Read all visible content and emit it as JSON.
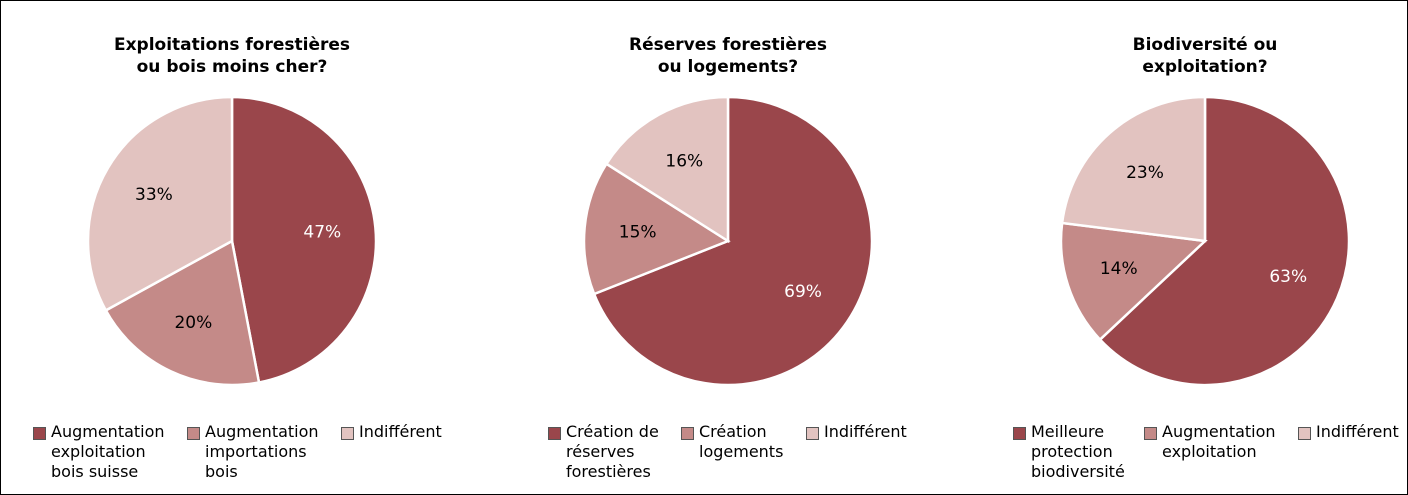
{
  "chart_data": [
    {
      "type": "pie",
      "title": "Exploitations forestières\nou bois moins cher?",
      "labels": [
        "Augmentation\nexploitation\nbois suisse",
        "Augmentation\nimportations\nbois",
        "Indifférent"
      ],
      "values": [
        47,
        20,
        33
      ],
      "value_labels": [
        "47%",
        "20%",
        "33%"
      ],
      "colors": [
        "#9a464b",
        "#c48a88",
        "#e2c3c0"
      ],
      "label_colors": [
        "#ffffff",
        "#000000",
        "#000000"
      ]
    },
    {
      "type": "pie",
      "title": "Réserves forestières\nou logements?",
      "labels": [
        "Création de\nréserves\nforestières",
        "Création\nlogements",
        "Indifférent"
      ],
      "values": [
        69,
        15,
        16
      ],
      "value_labels": [
        "69%",
        "15%",
        "16%"
      ],
      "colors": [
        "#9a464b",
        "#c48a88",
        "#e2c3c0"
      ],
      "label_colors": [
        "#ffffff",
        "#000000",
        "#000000"
      ]
    },
    {
      "type": "pie",
      "title": "Biodiversité ou\nexploitation?",
      "labels": [
        "Meilleure\nprotection\nbiodiversité",
        "Augmentation\nexploitation",
        "Indifférent"
      ],
      "values": [
        63,
        14,
        23
      ],
      "value_labels": [
        "63%",
        "14%",
        "23%"
      ],
      "colors": [
        "#9a464b",
        "#c48a88",
        "#e2c3c0"
      ],
      "label_colors": [
        "#ffffff",
        "#000000",
        "#000000"
      ]
    }
  ]
}
